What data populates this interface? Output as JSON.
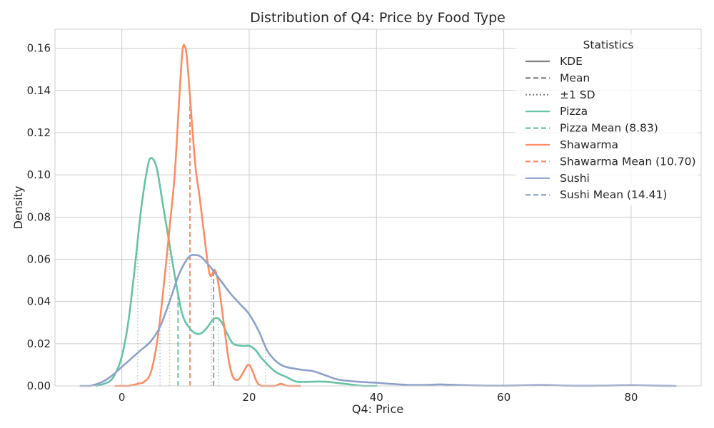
{
  "chart_data": {
    "type": "line",
    "title": "Distribution of Q4: Price by Food Type",
    "xlabel": "Q4: Price",
    "ylabel": "Density",
    "xlim": [
      -10.5,
      91
    ],
    "ylim": [
      0,
      0.169
    ],
    "xticks": [
      0,
      20,
      40,
      60,
      80
    ],
    "yticks": [
      0.0,
      0.02,
      0.04,
      0.06,
      0.08,
      0.1,
      0.12,
      0.14,
      0.16
    ],
    "yticks_decimals": 2,
    "grid": true,
    "legend_placement": "top-right",
    "legend": {
      "title": "Statistics",
      "entries": [
        {
          "label": "KDE",
          "style": "solid",
          "color": "#808080"
        },
        {
          "label": "Mean",
          "style": "dashed",
          "color": "#808080"
        },
        {
          "label": "±1 SD",
          "style": "dotted",
          "color": "#808080"
        },
        {
          "label": "Pizza",
          "style": "solid",
          "color": "#66c2a5"
        },
        {
          "label": "Pizza Mean (8.83)",
          "style": "dashed",
          "color": "#66c2a5"
        },
        {
          "label": "Shawarma",
          "style": "solid",
          "color": "#fc8d62"
        },
        {
          "label": "Shawarma Mean (10.70)",
          "style": "dashed",
          "color": "#fc8d62"
        },
        {
          "label": "Sushi",
          "style": "solid",
          "color": "#8da0cb"
        },
        {
          "label": "Sushi Mean (14.41)",
          "style": "dashed",
          "color": "#8da0cb"
        }
      ]
    },
    "series": [
      {
        "name": "Pizza",
        "color": "#66c2a5",
        "mean": 8.83,
        "sd_low": 2.5,
        "sd_high": 15.2,
        "points": [
          [
            -4.0,
            0.0
          ],
          [
            -2.0,
            0.002
          ],
          [
            -1.0,
            0.006
          ],
          [
            0.0,
            0.014
          ],
          [
            1.0,
            0.03
          ],
          [
            2.0,
            0.055
          ],
          [
            3.0,
            0.083
          ],
          [
            4.0,
            0.103
          ],
          [
            4.6,
            0.108
          ],
          [
            5.5,
            0.103
          ],
          [
            6.5,
            0.085
          ],
          [
            7.5,
            0.067
          ],
          [
            8.5,
            0.049
          ],
          [
            9.5,
            0.034
          ],
          [
            10.5,
            0.028
          ],
          [
            11.5,
            0.025
          ],
          [
            12.5,
            0.025
          ],
          [
            13.5,
            0.028
          ],
          [
            14.5,
            0.032
          ],
          [
            15.5,
            0.031
          ],
          [
            16.5,
            0.025
          ],
          [
            17.5,
            0.02
          ],
          [
            19.0,
            0.019
          ],
          [
            20.0,
            0.019
          ],
          [
            21.0,
            0.017
          ],
          [
            22.0,
            0.013
          ],
          [
            24.0,
            0.007
          ],
          [
            26.0,
            0.004
          ],
          [
            27.5,
            0.002
          ],
          [
            30.0,
            0.002
          ],
          [
            32.0,
            0.002
          ],
          [
            35.0,
            0.001
          ],
          [
            38.0,
            0.0
          ],
          [
            40.0,
            0.0
          ]
        ]
      },
      {
        "name": "Shawarma",
        "color": "#fc8d62",
        "mean": 10.7,
        "sd_low": 7.5,
        "sd_high": 14.1,
        "points": [
          [
            -1.0,
            0.0
          ],
          [
            1.0,
            0.0
          ],
          [
            2.5,
            0.001
          ],
          [
            3.5,
            0.002
          ],
          [
            4.5,
            0.006
          ],
          [
            5.5,
            0.02
          ],
          [
            6.5,
            0.045
          ],
          [
            7.5,
            0.075
          ],
          [
            8.3,
            0.1
          ],
          [
            9.0,
            0.135
          ],
          [
            9.5,
            0.158
          ],
          [
            9.9,
            0.161
          ],
          [
            10.3,
            0.153
          ],
          [
            11.0,
            0.125
          ],
          [
            11.6,
            0.103
          ],
          [
            12.2,
            0.09
          ],
          [
            13.0,
            0.07
          ],
          [
            13.6,
            0.056
          ],
          [
            14.0,
            0.052
          ],
          [
            14.6,
            0.055
          ],
          [
            15.2,
            0.048
          ],
          [
            16.0,
            0.03
          ],
          [
            16.8,
            0.012
          ],
          [
            17.5,
            0.004
          ],
          [
            18.3,
            0.003
          ],
          [
            19.0,
            0.006
          ],
          [
            19.8,
            0.01
          ],
          [
            20.4,
            0.008
          ],
          [
            21.2,
            0.002
          ],
          [
            22.0,
            0.0
          ],
          [
            24.0,
            0.0
          ],
          [
            25.0,
            0.001
          ],
          [
            26.0,
            0.0
          ],
          [
            28.0,
            0.0
          ]
        ]
      },
      {
        "name": "Sushi",
        "color": "#8da0cb",
        "mean": 14.41,
        "sd_low": 6.0,
        "sd_high": 22.6,
        "points": [
          [
            -6.5,
            0.0
          ],
          [
            -5.0,
            0.0
          ],
          [
            -3.0,
            0.002
          ],
          [
            -1.5,
            0.005
          ],
          [
            0.0,
            0.009
          ],
          [
            1.5,
            0.013
          ],
          [
            3.0,
            0.017
          ],
          [
            4.5,
            0.021
          ],
          [
            6.0,
            0.028
          ],
          [
            7.5,
            0.04
          ],
          [
            9.0,
            0.053
          ],
          [
            10.5,
            0.061
          ],
          [
            11.5,
            0.062
          ],
          [
            12.5,
            0.061
          ],
          [
            14.0,
            0.056
          ],
          [
            15.5,
            0.05
          ],
          [
            17.0,
            0.044
          ],
          [
            18.5,
            0.039
          ],
          [
            20.0,
            0.034
          ],
          [
            21.5,
            0.026
          ],
          [
            23.0,
            0.016
          ],
          [
            25.0,
            0.01
          ],
          [
            27.5,
            0.008
          ],
          [
            30.0,
            0.007
          ],
          [
            32.0,
            0.005
          ],
          [
            34.0,
            0.003
          ],
          [
            37.0,
            0.002
          ],
          [
            40.0,
            0.0015
          ],
          [
            42.0,
            0.001
          ],
          [
            45.0,
            0.0005
          ],
          [
            48.0,
            0.0005
          ],
          [
            50.0,
            0.0007
          ],
          [
            53.0,
            0.0004
          ],
          [
            58.0,
            0.0001
          ],
          [
            62.0,
            0.0002
          ],
          [
            66.0,
            0.0004
          ],
          [
            70.0,
            0.0001
          ],
          [
            75.0,
            0.0001
          ],
          [
            80.0,
            0.0003
          ],
          [
            84.0,
            0.0001
          ],
          [
            87.0,
            0.0
          ]
        ]
      }
    ]
  }
}
